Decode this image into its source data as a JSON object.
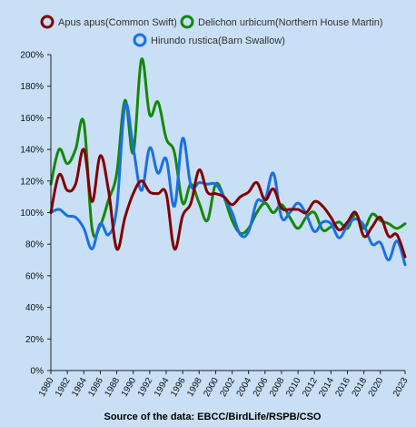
{
  "chart_data": {
    "type": "line",
    "title": "",
    "xlabel": "",
    "ylabel": "",
    "source": "Source of the data: EBCC/BirdLife/RSPB/CSO",
    "ylim": [
      0,
      200
    ],
    "xlim": [
      1980,
      2023
    ],
    "y_ticks": [
      0,
      20,
      40,
      60,
      80,
      100,
      120,
      140,
      160,
      180,
      200
    ],
    "y_tick_labels": [
      "0%",
      "20%",
      "40%",
      "60%",
      "80%",
      "100%",
      "120%",
      "140%",
      "160%",
      "180%",
      "200%"
    ],
    "x_ticks": [
      1980,
      1982,
      1984,
      1986,
      1988,
      1990,
      1992,
      1994,
      1996,
      1998,
      2000,
      2002,
      2004,
      2006,
      2008,
      2010,
      2012,
      2014,
      2016,
      2018,
      2020,
      2023
    ],
    "x_tick_labels": [
      "1980",
      "1982",
      "1984",
      "1986",
      "1988",
      "1990",
      "1992",
      "1994",
      "1996",
      "1998",
      "2000",
      "2002",
      "2004",
      "2006",
      "2008",
      "2010",
      "2012",
      "2014",
      "2016",
      "2018",
      "2020",
      "2023"
    ],
    "grid": false,
    "legend_position": "top",
    "x": [
      1980,
      1981,
      1982,
      1983,
      1984,
      1985,
      1986,
      1987,
      1988,
      1989,
      1990,
      1991,
      1992,
      1993,
      1994,
      1995,
      1996,
      1997,
      1998,
      1999,
      2000,
      2001,
      2002,
      2003,
      2004,
      2005,
      2006,
      2007,
      2008,
      2009,
      2010,
      2011,
      2012,
      2013,
      2014,
      2015,
      2016,
      2017,
      2018,
      2019,
      2020,
      2021,
      2022,
      2023
    ],
    "series": [
      {
        "name": "Apus apus(Common Swift)",
        "color": "#800000",
        "values": [
          100,
          124,
          114,
          118,
          140,
          107,
          136,
          114,
          77,
          97,
          112,
          120,
          113,
          112,
          112,
          77,
          98,
          106,
          127,
          113,
          112,
          110,
          105,
          110,
          113,
          119,
          108,
          115,
          103,
          102,
          102,
          100,
          107,
          104,
          97,
          89,
          94,
          100,
          85,
          91,
          97,
          85,
          86,
          72
        ]
      },
      {
        "name": "Delichon urbicum(Northern House Martin)",
        "color": "#138808",
        "values": [
          118,
          140,
          131,
          140,
          157,
          90,
          92,
          108,
          125,
          171,
          138,
          197,
          162,
          170,
          147,
          138,
          106,
          118,
          106,
          95,
          118,
          110,
          95,
          87,
          90,
          100,
          106,
          100,
          105,
          97,
          90,
          97,
          100,
          89,
          91,
          94,
          90,
          99,
          90,
          99,
          95,
          93,
          90,
          93
        ]
      },
      {
        "name": "Hirundo rustica(Barn Swallow)",
        "color": "#1a6fe6",
        "values": [
          100,
          102,
          98,
          97,
          90,
          77,
          93,
          86,
          103,
          168,
          141,
          114,
          141,
          125,
          134,
          104,
          147,
          117,
          119,
          118,
          118,
          110,
          100,
          86,
          88,
          107,
          108,
          125,
          97,
          100,
          106,
          99,
          88,
          94,
          93,
          84,
          92,
          96,
          92,
          80,
          81,
          70,
          82,
          67
        ]
      }
    ]
  }
}
